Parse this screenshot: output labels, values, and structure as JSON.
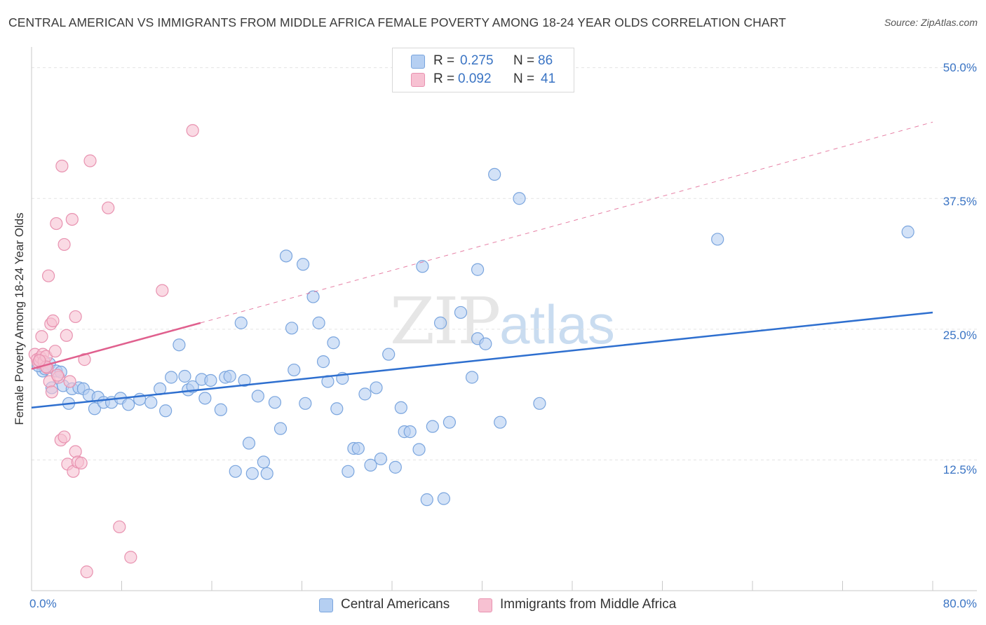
{
  "title": "CENTRAL AMERICAN VS IMMIGRANTS FROM MIDDLE AFRICA FEMALE POVERTY AMONG 18-24 YEAR OLDS CORRELATION CHART",
  "source": "Source: ZipAtlas.com",
  "watermark": {
    "zip": "ZIP",
    "atlas": "atlas"
  },
  "legend_top": [
    {
      "r_label": "R =",
      "r_value": "0.275",
      "n_label": "N =",
      "n_value": "86"
    },
    {
      "r_label": "R =",
      "r_value": "0.092",
      "n_label": "N =",
      "n_value": "41"
    }
  ],
  "colors": {
    "blue_fill": "#b5cff2",
    "blue_stroke": "#7aa5de",
    "blue_line": "#2e6fcf",
    "pink_fill": "#f7c1d2",
    "pink_stroke": "#e892b0",
    "pink_line": "#e0608e",
    "grid": "#e3e3e3",
    "tick_label": "#3a74c4"
  },
  "chart_data": {
    "type": "scatter",
    "title": "CENTRAL AMERICAN VS IMMIGRANTS FROM MIDDLE AFRICA FEMALE POVERTY AMONG 18-24 YEAR OLDS CORRELATION CHART",
    "xlabel": "",
    "ylabel": "Female Poverty Among 18-24 Year Olds",
    "xlim": [
      0,
      80
    ],
    "ylim": [
      0,
      51.25
    ],
    "x_tick_labels": [
      "0.0%",
      "80.0%"
    ],
    "y_ticks": [
      12.5,
      25.0,
      37.5,
      50.0
    ],
    "y_tick_labels": [
      "12.5%",
      "25.0%",
      "37.5%",
      "50.0%"
    ],
    "grid": true,
    "legend_position": "top-center",
    "series": [
      {
        "name": "Central Americans",
        "color": "blue",
        "trend": {
          "x0": 0,
          "y0": 17.5,
          "x1": 80,
          "y1": 26.6,
          "style": "solid"
        },
        "points": [
          [
            1,
            21.0
          ],
          [
            1.6,
            21.7
          ],
          [
            1.8,
            19.4
          ],
          [
            2.2,
            21.0
          ],
          [
            2.8,
            19.6
          ],
          [
            3.3,
            17.9
          ],
          [
            3.6,
            19.3
          ],
          [
            4.2,
            19.4
          ],
          [
            4.6,
            19.3
          ],
          [
            5.1,
            18.7
          ],
          [
            5.6,
            17.4
          ],
          [
            5.9,
            18.5
          ],
          [
            6.4,
            18.0
          ],
          [
            7.1,
            18.0
          ],
          [
            7.9,
            18.4
          ],
          [
            8.6,
            17.8
          ],
          [
            9.6,
            18.3
          ],
          [
            10.6,
            18.0
          ],
          [
            11.4,
            19.3
          ],
          [
            11.9,
            17.2
          ],
          [
            12.4,
            20.4
          ],
          [
            13.1,
            23.5
          ],
          [
            13.6,
            20.5
          ],
          [
            13.9,
            19.2
          ],
          [
            14.3,
            19.5
          ],
          [
            15.1,
            20.2
          ],
          [
            15.4,
            18.4
          ],
          [
            15.9,
            20.1
          ],
          [
            16.8,
            17.3
          ],
          [
            17.2,
            20.4
          ],
          [
            17.6,
            20.5
          ],
          [
            18.1,
            11.4
          ],
          [
            18.6,
            25.6
          ],
          [
            18.9,
            20.1
          ],
          [
            19.3,
            14.1
          ],
          [
            19.6,
            11.2
          ],
          [
            20.1,
            18.6
          ],
          [
            20.6,
            12.3
          ],
          [
            20.9,
            11.2
          ],
          [
            21.6,
            18.0
          ],
          [
            22.1,
            15.5
          ],
          [
            22.6,
            32.0
          ],
          [
            23.1,
            25.1
          ],
          [
            23.3,
            21.1
          ],
          [
            24.1,
            31.2
          ],
          [
            24.3,
            17.9
          ],
          [
            25.0,
            28.1
          ],
          [
            25.5,
            25.6
          ],
          [
            25.9,
            21.9
          ],
          [
            26.3,
            20.0
          ],
          [
            26.8,
            23.7
          ],
          [
            27.1,
            17.4
          ],
          [
            27.6,
            20.3
          ],
          [
            28.1,
            11.4
          ],
          [
            28.6,
            13.6
          ],
          [
            29.0,
            13.6
          ],
          [
            29.6,
            18.8
          ],
          [
            30.1,
            12.0
          ],
          [
            30.6,
            19.4
          ],
          [
            31.0,
            12.6
          ],
          [
            31.7,
            22.6
          ],
          [
            32.3,
            11.8
          ],
          [
            32.8,
            17.5
          ],
          [
            33.1,
            15.2
          ],
          [
            33.6,
            15.2
          ],
          [
            34.4,
            13.5
          ],
          [
            34.7,
            31.0
          ],
          [
            35.1,
            8.7
          ],
          [
            35.6,
            15.7
          ],
          [
            36.3,
            25.6
          ],
          [
            36.6,
            8.8
          ],
          [
            37.1,
            16.1
          ],
          [
            38.1,
            26.6
          ],
          [
            39.1,
            20.4
          ],
          [
            39.6,
            30.7
          ],
          [
            39.6,
            24.1
          ],
          [
            40.3,
            23.6
          ],
          [
            41.1,
            39.8
          ],
          [
            41.6,
            16.1
          ],
          [
            43.3,
            37.5
          ],
          [
            45.1,
            17.9
          ],
          [
            60.9,
            33.6
          ],
          [
            77.8,
            34.3
          ],
          [
            1.2,
            21.2
          ],
          [
            2.6,
            20.9
          ],
          [
            0.6,
            21.5
          ]
        ]
      },
      {
        "name": "Immigrants from Middle Africa",
        "color": "pink",
        "trend": {
          "x0": 0,
          "y0": 21.2,
          "x1": 15,
          "y1": 25.6,
          "style": "solid",
          "extends_dashed_to": {
            "x": 80,
            "y": 44.8
          }
        },
        "points": [
          [
            0.3,
            22.6
          ],
          [
            0.5,
            22.1
          ],
          [
            0.6,
            21.8
          ],
          [
            0.8,
            22.3
          ],
          [
            0.9,
            24.3
          ],
          [
            1.0,
            22.6
          ],
          [
            1.1,
            21.9
          ],
          [
            1.3,
            22.4
          ],
          [
            1.4,
            21.3
          ],
          [
            1.5,
            30.1
          ],
          [
            1.6,
            20.0
          ],
          [
            1.7,
            25.5
          ],
          [
            1.8,
            19.0
          ],
          [
            1.9,
            25.8
          ],
          [
            2.1,
            22.9
          ],
          [
            2.2,
            35.1
          ],
          [
            2.4,
            20.4
          ],
          [
            2.6,
            14.4
          ],
          [
            2.7,
            40.6
          ],
          [
            2.9,
            14.7
          ],
          [
            2.9,
            33.1
          ],
          [
            3.1,
            24.4
          ],
          [
            3.2,
            12.1
          ],
          [
            3.4,
            20.0
          ],
          [
            3.6,
            35.5
          ],
          [
            3.7,
            11.4
          ],
          [
            3.9,
            26.2
          ],
          [
            3.9,
            13.3
          ],
          [
            4.1,
            12.3
          ],
          [
            4.4,
            12.2
          ],
          [
            4.7,
            22.1
          ],
          [
            5.2,
            41.1
          ],
          [
            6.8,
            36.6
          ],
          [
            7.8,
            6.1
          ],
          [
            8.8,
            3.2
          ],
          [
            11.6,
            28.7
          ],
          [
            14.3,
            44.0
          ],
          [
            4.9,
            1.8
          ],
          [
            1.3,
            21.4
          ],
          [
            2.3,
            20.6
          ],
          [
            0.7,
            22.0
          ]
        ]
      }
    ]
  },
  "legend_bottom": [
    "Central Americans",
    "Immigrants from Middle Africa"
  ]
}
